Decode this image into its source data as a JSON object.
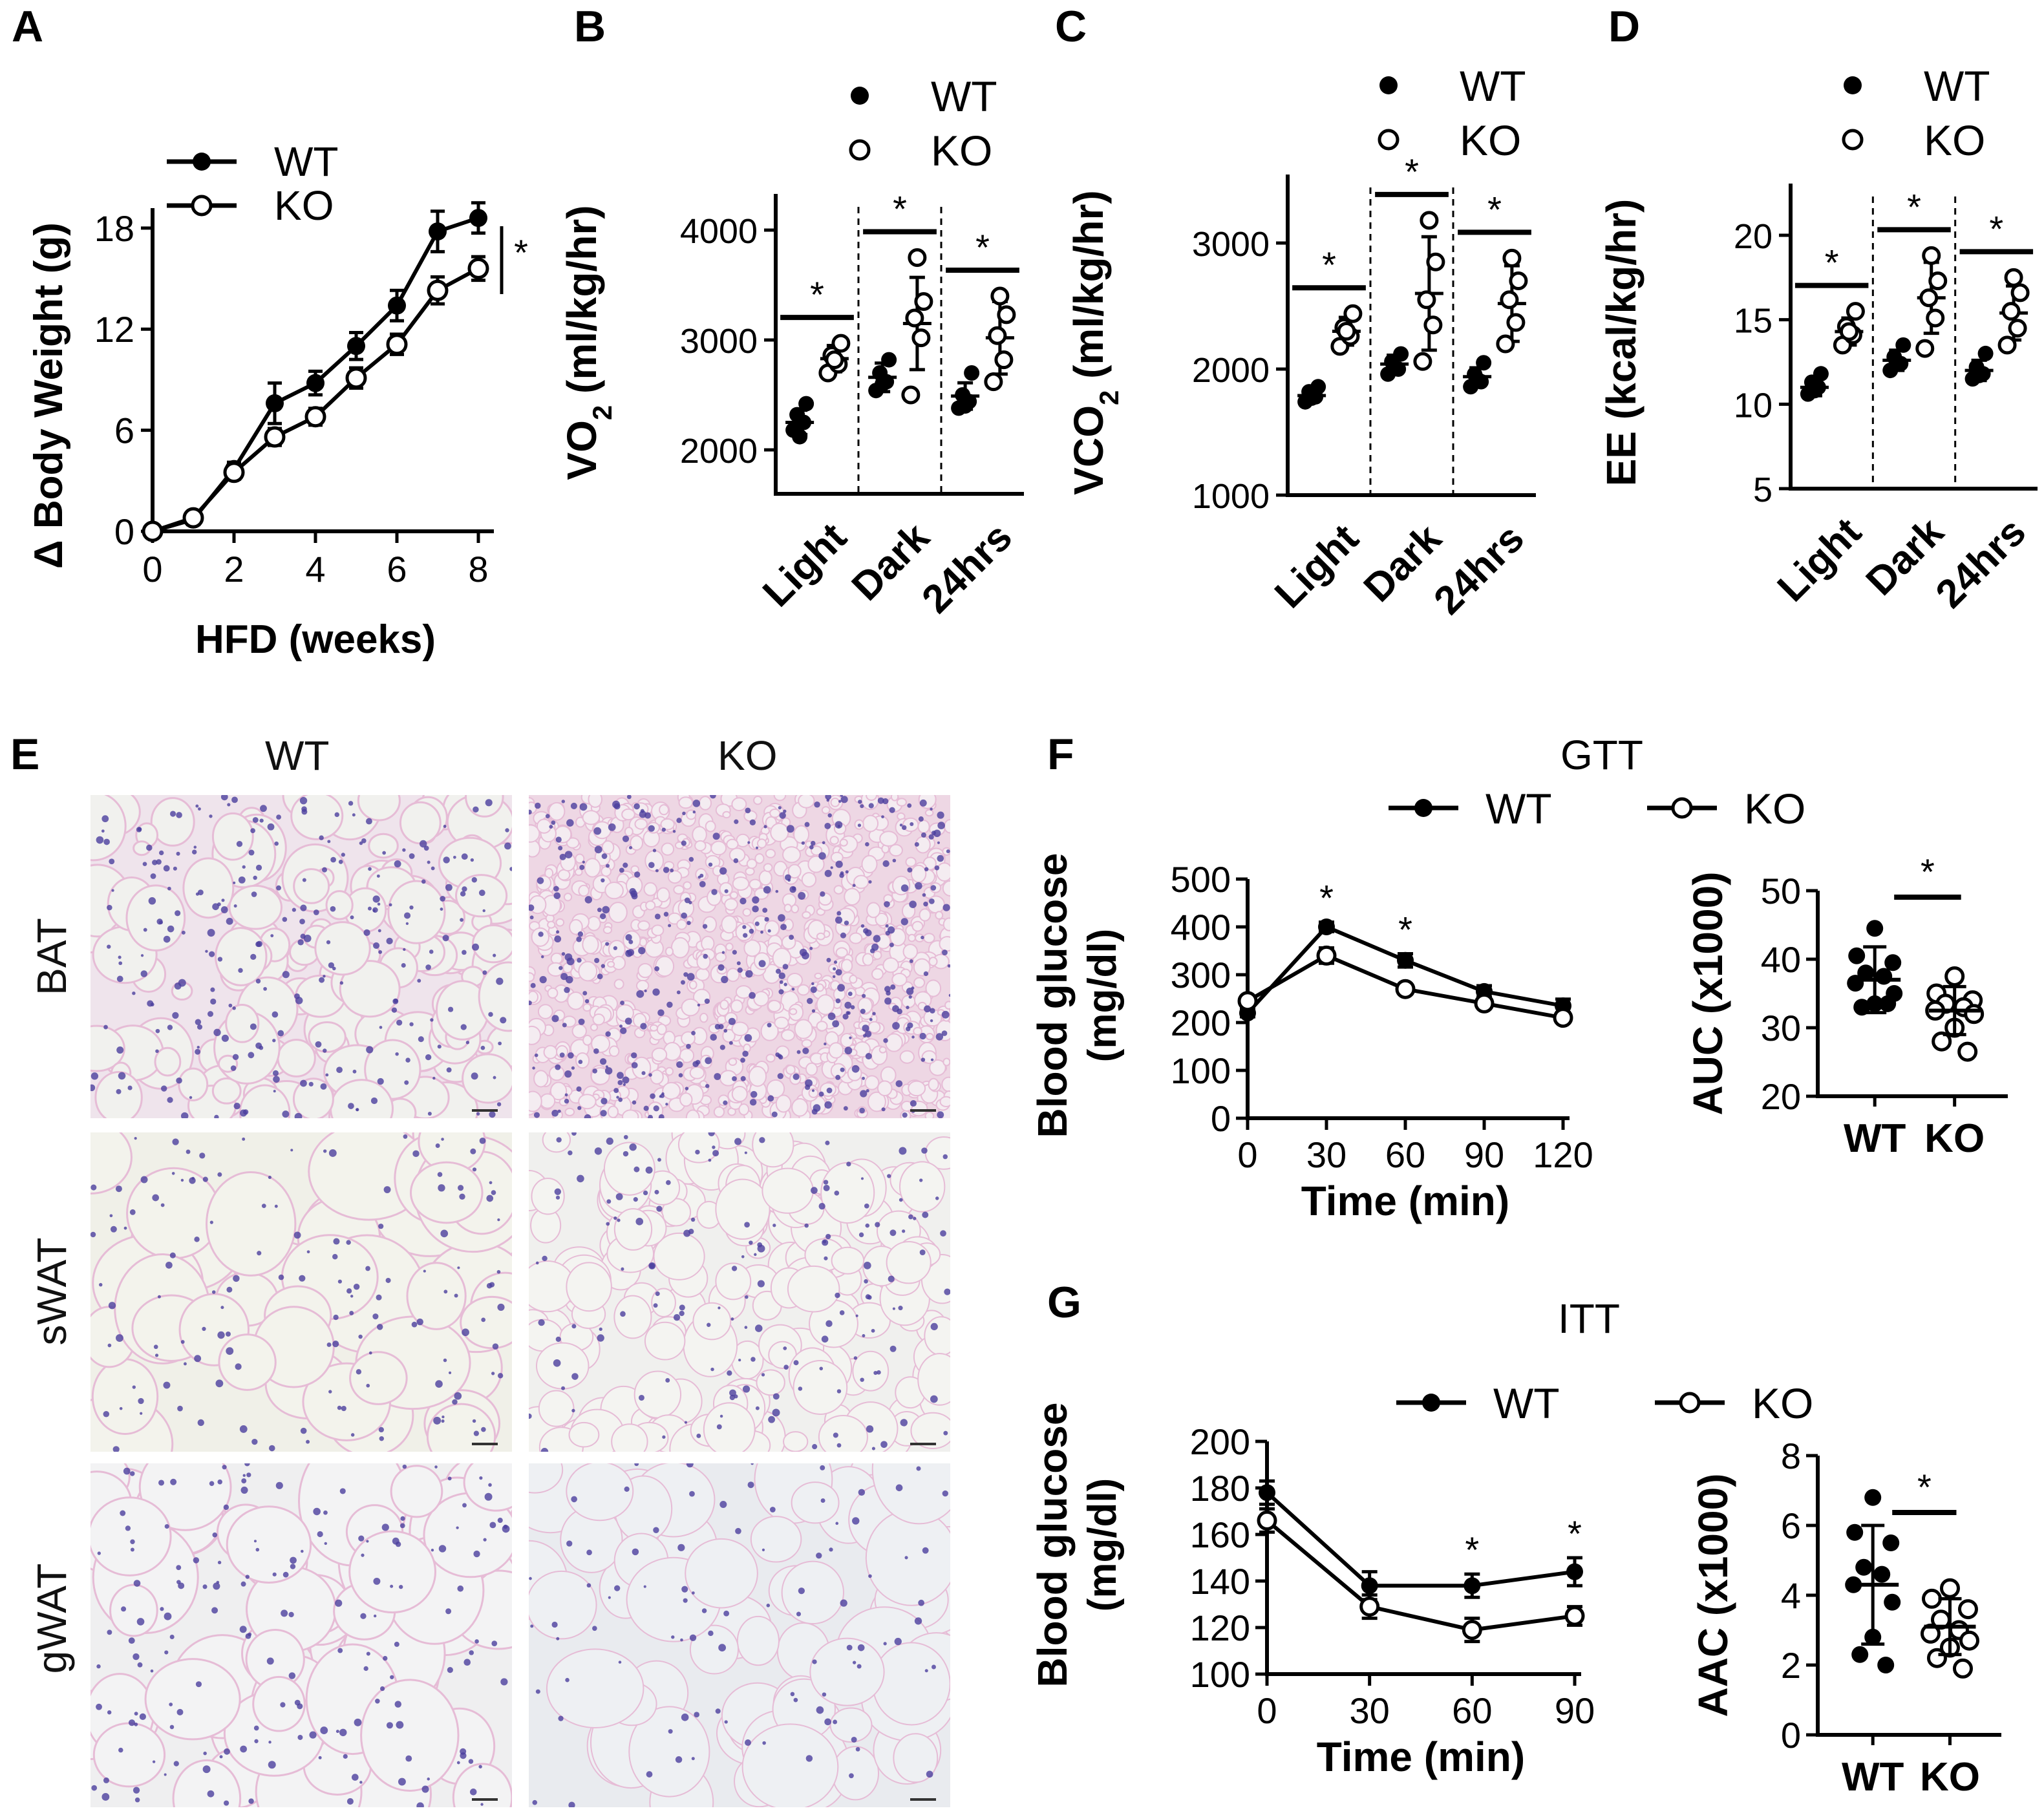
{
  "panels": {
    "A": {
      "label": "A"
    },
    "B": {
      "label": "B"
    },
    "C": {
      "label": "C"
    },
    "D": {
      "label": "D"
    },
    "E": {
      "label": "E"
    },
    "F": {
      "label": "F"
    },
    "G": {
      "label": "G"
    }
  },
  "histology": {
    "col_wt": "WT",
    "col_ko": "KO",
    "rows": [
      "BAT",
      "sWAT",
      "gWAT"
    ]
  },
  "colors": {
    "ink": "#000000",
    "he_pink": "#e6bcd6",
    "he_nuclei": "#4b3f9e",
    "he_background": "#f1f1ee"
  },
  "chart_data": [
    {
      "id": "A",
      "type": "line",
      "xlabel": "HFD (weeks)",
      "ylabel": "Δ Body Weight (g)",
      "xticks": [
        "0",
        "2",
        "4",
        "6",
        "8"
      ],
      "yticks": [
        "0",
        "6",
        "12",
        "18"
      ],
      "xlim": [
        0,
        8.5
      ],
      "ylim": [
        0,
        20.5
      ],
      "legend_placement": "top-left",
      "x": [
        0,
        1,
        2,
        3,
        4,
        5,
        6,
        7,
        8
      ],
      "series": [
        {
          "name": "WT",
          "marker": "filled",
          "values": [
            0,
            0.7,
            3.7,
            7.6,
            8.8,
            11.0,
            13.4,
            17.8,
            18.6
          ],
          "err": [
            0.2,
            0.3,
            0.4,
            1.2,
            0.7,
            0.8,
            0.9,
            1.2,
            0.9
          ]
        },
        {
          "name": "KO",
          "marker": "open",
          "values": [
            0,
            0.8,
            3.5,
            5.6,
            6.8,
            9.1,
            11.1,
            14.3,
            15.6
          ],
          "err": [
            0.2,
            0.3,
            0.4,
            0.5,
            0.5,
            0.6,
            0.6,
            0.8,
            0.7
          ]
        }
      ],
      "annotations": [
        "*"
      ]
    },
    {
      "id": "B",
      "type": "scatter",
      "ylabel": "VO",
      "ylabel_sub": "2",
      "ylabel_rest": " (ml/kg/hr)",
      "categories": [
        "Light",
        "Dark",
        "24hrs"
      ],
      "ylim": [
        1600,
        4500
      ],
      "yticks": [
        "2000",
        "3000",
        "4000"
      ],
      "ytick_values": [
        2000,
        3000,
        4000
      ],
      "legend_placement": "top-right",
      "groups": [
        {
          "name": "WT",
          "marker": "filled",
          "points": [
            [
              2180,
              2250,
              2320,
              2420,
              2120
            ],
            [
              2540,
              2620,
              2700,
              2820,
              2600
            ],
            [
              2380,
              2440,
              2500,
              2700,
              2400
            ]
          ],
          "mean": [
            2250,
            2660,
            2490
          ],
          "sd": [
            110,
            130,
            120
          ]
        },
        {
          "name": "KO",
          "marker": "open",
          "points": [
            [
              2700,
              2780,
              2860,
              2970,
              2820
            ],
            [
              2500,
              3020,
              3200,
              3350,
              3750
            ],
            [
              2620,
              2820,
              3040,
              3230,
              3400
            ]
          ],
          "mean": [
            2830,
            3150,
            3020
          ],
          "sd": [
            120,
            420,
            330
          ]
        }
      ],
      "sig": [
        "*",
        "*",
        "*"
      ]
    },
    {
      "id": "C",
      "type": "scatter",
      "ylabel": "VCO",
      "ylabel_sub": "2",
      "ylabel_rest": " (ml/kg/hr)",
      "categories": [
        "Light",
        "Dark",
        "24hrs"
      ],
      "ylim": [
        1000,
        3500
      ],
      "yticks": [
        "1000",
        "2000",
        "3000"
      ],
      "ytick_values": [
        1000,
        2000,
        3000
      ],
      "legend_placement": "top-right",
      "groups": [
        {
          "name": "WT",
          "marker": "filled",
          "points": [
            [
              1740,
              1780,
              1820,
              1860,
              1770
            ],
            [
              1960,
              2000,
              2060,
              2120,
              2010
            ],
            [
              1860,
              1900,
              1960,
              2050,
              1920
            ]
          ],
          "mean": [
            1790,
            2040,
            1940
          ],
          "sd": [
            50,
            70,
            70
          ]
        },
        {
          "name": "KO",
          "marker": "open",
          "points": [
            [
              2180,
              2260,
              2330,
              2440,
              2300
            ],
            [
              2060,
              2350,
              2550,
              2850,
              3180
            ],
            [
              2200,
              2370,
              2550,
              2700,
              2880
            ]
          ],
          "mean": [
            2300,
            2600,
            2520
          ],
          "sd": [
            110,
            450,
            300
          ]
        }
      ],
      "sig": [
        "*",
        "*",
        "*"
      ]
    },
    {
      "id": "D",
      "type": "scatter",
      "ylabel": "EE (kcal/kg/hr)",
      "categories": [
        "Light",
        "Dark",
        "24hrs"
      ],
      "ylim": [
        5,
        23
      ],
      "yticks": [
        "5",
        "10",
        "15",
        "20"
      ],
      "ytick_values": [
        5,
        10,
        15,
        20
      ],
      "legend_placement": "top-right",
      "groups": [
        {
          "name": "WT",
          "marker": "filled",
          "points": [
            [
              10.6,
              11.0,
              11.3,
              11.8,
              10.8
            ],
            [
              12.0,
              12.4,
              12.8,
              13.5,
              12.5
            ],
            [
              11.5,
              11.8,
              12.2,
              13.0,
              11.7
            ]
          ],
          "mean": [
            11.0,
            12.6,
            12.0
          ],
          "sd": [
            0.5,
            0.6,
            0.6
          ]
        },
        {
          "name": "KO",
          "marker": "open",
          "points": [
            [
              13.5,
              14.1,
              14.6,
              15.5,
              14.3
            ],
            [
              13.3,
              15.1,
              16.3,
              17.3,
              18.8
            ],
            [
              13.5,
              14.5,
              15.5,
              16.6,
              17.5
            ]
          ],
          "mean": [
            14.3,
            16.3,
            15.4
          ],
          "sd": [
            0.8,
            2.1,
            1.6
          ]
        }
      ],
      "sig": [
        "*",
        "*",
        "*"
      ]
    },
    {
      "id": "F-line",
      "type": "line",
      "title": "GTT",
      "xlabel": "Time (min)",
      "ylabel": "Blood glucose",
      "ylabel2": "(mg/dl)",
      "x": [
        0,
        30,
        60,
        90,
        120
      ],
      "xticks": [
        "0",
        "30",
        "60",
        "90",
        "120"
      ],
      "xlim": [
        0,
        120
      ],
      "ylim": [
        0,
        500
      ],
      "yticks": [
        "0",
        "100",
        "200",
        "300",
        "400",
        "500"
      ],
      "ytick_values": [
        0,
        100,
        200,
        300,
        400,
        500
      ],
      "legend_placement": "top",
      "series": [
        {
          "name": "WT",
          "marker": "filled",
          "values": [
            220,
            400,
            330,
            265,
            235
          ],
          "err": [
            8,
            10,
            14,
            12,
            14
          ]
        },
        {
          "name": "KO",
          "marker": "open",
          "values": [
            245,
            340,
            270,
            240,
            210
          ],
          "err": [
            8,
            16,
            10,
            10,
            10
          ]
        }
      ],
      "sig_x": [
        30,
        60
      ]
    },
    {
      "id": "F-auc",
      "type": "scatter",
      "ylabel": "AUC (x1000)",
      "categories": [
        "WT",
        "KO"
      ],
      "ylim": [
        20,
        50
      ],
      "yticks": [
        "20",
        "30",
        "40",
        "50"
      ],
      "ytick_values": [
        20,
        30,
        40,
        50
      ],
      "groups": [
        {
          "name": "WT",
          "marker": "filled",
          "points": [
            44.5,
            40.5,
            39.5,
            38.0,
            37.5,
            36.5,
            35.0,
            33.5,
            33.0,
            33.5
          ],
          "mean": 37.0,
          "sd": 4.8
        },
        {
          "name": "KO",
          "marker": "open",
          "points": [
            37.5,
            35.0,
            34.0,
            33.5,
            33.0,
            32.5,
            32.0,
            30.0,
            28.0,
            26.5
          ],
          "mean": 32.5,
          "sd": 3.5
        }
      ],
      "sig": "*"
    },
    {
      "id": "G-line",
      "type": "line",
      "title": "ITT",
      "xlabel": "Time (min)",
      "ylabel": "Blood glucose",
      "ylabel2": "(mg/dl)",
      "x": [
        0,
        30,
        60,
        90
      ],
      "xticks": [
        "0",
        "30",
        "60",
        "90"
      ],
      "xlim": [
        0,
        90
      ],
      "ylim": [
        100,
        200
      ],
      "yticks": [
        "100",
        "120",
        "140",
        "160",
        "180",
        "200"
      ],
      "ytick_values": [
        100,
        120,
        140,
        160,
        180,
        200
      ],
      "legend_placement": "top",
      "series": [
        {
          "name": "WT",
          "marker": "filled",
          "values": [
            178,
            138,
            138,
            144
          ],
          "err": [
            5,
            6,
            5,
            6
          ]
        },
        {
          "name": "KO",
          "marker": "open",
          "values": [
            166,
            129,
            119,
            125
          ],
          "err": [
            5,
            5,
            5,
            4
          ]
        }
      ],
      "sig_x": [
        60,
        90
      ]
    },
    {
      "id": "G-aac",
      "type": "scatter",
      "ylabel": "AAC (x1000)",
      "categories": [
        "WT",
        "KO"
      ],
      "ylim": [
        0,
        8
      ],
      "yticks": [
        "0",
        "2",
        "4",
        "6",
        "8"
      ],
      "ytick_values": [
        0,
        2,
        4,
        6,
        8
      ],
      "groups": [
        {
          "name": "WT",
          "marker": "filled",
          "points": [
            6.8,
            5.8,
            5.5,
            4.8,
            4.6,
            4.3,
            3.8,
            2.8,
            2.3,
            2.0
          ],
          "mean": 4.3,
          "sd": 1.7
        },
        {
          "name": "KO",
          "marker": "open",
          "points": [
            4.2,
            3.9,
            3.6,
            3.3,
            3.0,
            2.9,
            2.7,
            2.5,
            2.2,
            1.9
          ],
          "mean": 3.1,
          "sd": 0.8
        }
      ],
      "sig": "*"
    }
  ]
}
